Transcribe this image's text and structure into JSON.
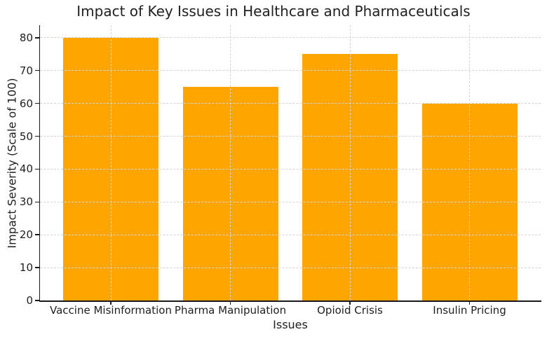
{
  "chart_data": {
    "type": "bar",
    "title": "Impact of Key Issues in Healthcare and Pharmaceuticals",
    "xlabel": "Issues",
    "ylabel": "Impact Severity (Scale of 100)",
    "categories": [
      "Vaccine Misinformation",
      "Pharma Manipulation",
      "Opioid Crisis",
      "Insulin Pricing"
    ],
    "values": [
      80,
      65,
      75,
      60
    ],
    "yticks": [
      0,
      10,
      20,
      30,
      40,
      50,
      60,
      70,
      80
    ],
    "ylim": [
      0,
      83.8
    ],
    "grid": true,
    "legend": false,
    "bar_color": "#FFA500",
    "grid_color": "#d4d4d4",
    "spine_color": "#1a1a1a",
    "text_color": "#1f1f1f",
    "background_color": "#ffffff"
  }
}
